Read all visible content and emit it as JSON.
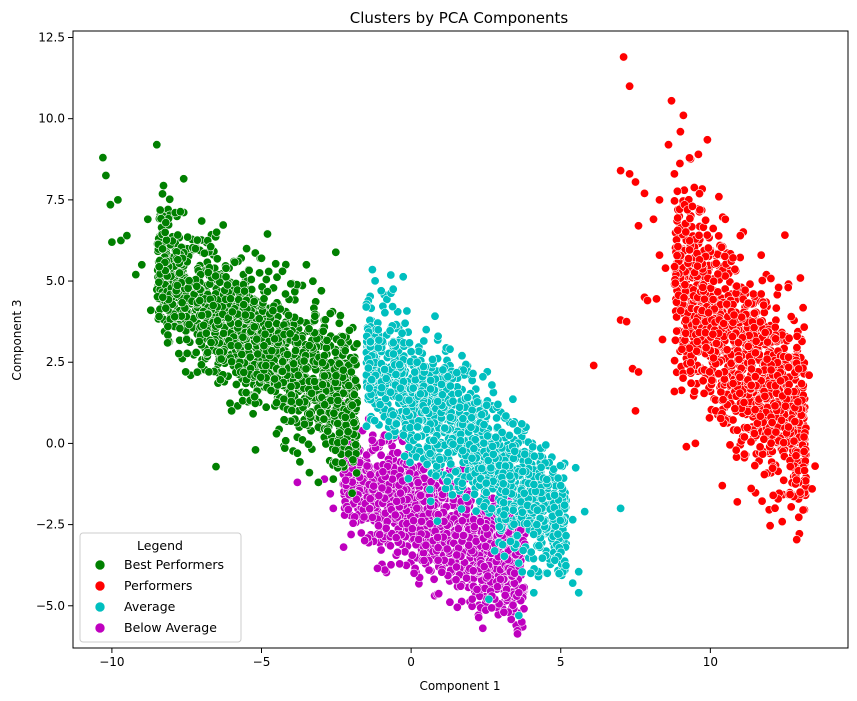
{
  "chart_data": {
    "type": "scatter",
    "title": "Clusters by PCA Components",
    "xlabel": "Component 1",
    "ylabel": "Component 3",
    "xlim": [
      -11.3,
      14.6
    ],
    "ylim": [
      -6.3,
      12.7
    ],
    "xticks": [
      -10,
      -5,
      0,
      5,
      10
    ],
    "yticks": [
      -5.0,
      -2.5,
      0.0,
      2.5,
      5.0,
      7.5,
      10.0,
      12.5
    ],
    "grid": false,
    "legend": {
      "title": "Legend",
      "placement": "lower-left"
    },
    "series": [
      {
        "name": "Best Performers",
        "color": "#008000",
        "cloud": {
          "x_range": [
            -8.5,
            -1.8
          ],
          "center_line": {
            "x0": -8,
            "y0": 5.0,
            "slope": -0.62
          },
          "spread": 1.0,
          "count": 1500
        },
        "points": [
          [
            -10.3,
            8.8
          ],
          [
            -10.2,
            8.25
          ],
          [
            -10.05,
            7.35
          ],
          [
            -9.8,
            7.5
          ],
          [
            -10.0,
            6.2
          ],
          [
            -9.7,
            6.25
          ],
          [
            -9.5,
            6.4
          ],
          [
            -8.5,
            9.2
          ],
          [
            -7.6,
            8.15
          ],
          [
            -9.2,
            5.2
          ],
          [
            -8.8,
            6.9
          ],
          [
            -7.0,
            6.85
          ],
          [
            -6.5,
            6.5
          ],
          [
            -5.5,
            6.0
          ],
          [
            -4.8,
            6.45
          ],
          [
            -3.5,
            5.5
          ],
          [
            -8.2,
            6.8
          ],
          [
            -9.0,
            5.5
          ],
          [
            -8.7,
            4.1
          ],
          [
            -5.0,
            5.7
          ],
          [
            -4.3,
            5.3
          ],
          [
            -3.0,
            4.7
          ],
          [
            -2.7,
            4.0
          ],
          [
            -2.4,
            3.7
          ],
          [
            -5.2,
            -0.2
          ],
          [
            -3.4,
            -0.9
          ],
          [
            -3.1,
            -1.2
          ],
          [
            -2.6,
            -1.1
          ],
          [
            -2.3,
            -0.6
          ],
          [
            -6.8,
            2.8
          ],
          [
            -7.5,
            3.2
          ],
          [
            -7.9,
            3.9
          ],
          [
            -8.3,
            4.5
          ],
          [
            -6.0,
            1.0
          ],
          [
            -4.5,
            0.3
          ],
          [
            -3.8,
            -0.3
          ],
          [
            -2.2,
            0.8
          ],
          [
            -2.0,
            2.2
          ],
          [
            -1.9,
            1.5
          ],
          [
            -4.2,
            4.6
          ]
        ]
      },
      {
        "name": "Performers",
        "color": "#ff0000",
        "cloud": {
          "x_range": [
            8.8,
            13.2
          ],
          "center_line": {
            "x0": 9.5,
            "y0": 4.5,
            "slope": -1.15
          },
          "spread": 1.4,
          "count": 1300
        },
        "points": [
          [
            7.1,
            11.9
          ],
          [
            7.3,
            11.0
          ],
          [
            8.7,
            10.55
          ],
          [
            9.1,
            10.1
          ],
          [
            9.0,
            9.6
          ],
          [
            8.6,
            9.2
          ],
          [
            9.9,
            9.35
          ],
          [
            9.6,
            8.9
          ],
          [
            7.0,
            8.4
          ],
          [
            7.3,
            8.3
          ],
          [
            7.5,
            8.05
          ],
          [
            7.8,
            7.7
          ],
          [
            7.6,
            6.7
          ],
          [
            8.1,
            6.9
          ],
          [
            8.3,
            7.5
          ],
          [
            8.8,
            8.3
          ],
          [
            6.1,
            2.4
          ],
          [
            7.0,
            3.8
          ],
          [
            7.2,
            3.75
          ],
          [
            7.4,
            2.3
          ],
          [
            7.6,
            2.2
          ],
          [
            7.5,
            1.0
          ],
          [
            7.8,
            4.5
          ],
          [
            8.2,
            4.45
          ],
          [
            8.5,
            5.4
          ],
          [
            8.4,
            3.2
          ],
          [
            8.8,
            1.6
          ],
          [
            9.2,
            -0.1
          ],
          [
            9.5,
            0.0
          ],
          [
            10.4,
            -1.3
          ],
          [
            10.9,
            -1.8
          ],
          [
            12.1,
            -1.6
          ],
          [
            13.1,
            -2.05
          ],
          [
            13.0,
            -1.5
          ],
          [
            13.4,
            -1.4
          ],
          [
            13.5,
            -0.7
          ],
          [
            13.3,
            2.1
          ],
          [
            12.9,
            3.3
          ],
          [
            12.6,
            4.8
          ],
          [
            11.7,
            5.8
          ],
          [
            11.0,
            6.4
          ],
          [
            10.5,
            6.9
          ],
          [
            9.4,
            7.3
          ],
          [
            8.3,
            5.8
          ],
          [
            7.9,
            4.4
          ]
        ]
      },
      {
        "name": "Average",
        "color": "#00bfbf",
        "cloud": {
          "x_range": [
            -1.5,
            5.2
          ],
          "center_line": {
            "x0": -1.0,
            "y0": 2.3,
            "slope": -0.78
          },
          "spread": 0.95,
          "count": 1400
        },
        "points": [
          [
            -1.5,
            4.2
          ],
          [
            -1.0,
            4.7
          ],
          [
            -0.6,
            4.75
          ],
          [
            -0.2,
            3.7
          ],
          [
            1.3,
            2.9
          ],
          [
            1.7,
            2.7
          ],
          [
            2.4,
            2.05
          ],
          [
            2.7,
            1.8
          ],
          [
            3.4,
            0.6
          ],
          [
            3.7,
            0.6
          ],
          [
            4.5,
            -0.05
          ],
          [
            5.5,
            -0.75
          ],
          [
            5.0,
            -1.3
          ],
          [
            5.8,
            -2.1
          ],
          [
            5.4,
            -2.35
          ],
          [
            7.0,
            -2.0
          ],
          [
            5.6,
            -3.95
          ],
          [
            5.4,
            -4.3
          ],
          [
            5.6,
            -4.6
          ],
          [
            4.1,
            -4.6
          ],
          [
            3.6,
            -5.3
          ],
          [
            4.0,
            -4.0
          ],
          [
            4.8,
            -3.6
          ],
          [
            0.9,
            3.3
          ],
          [
            2.6,
            -4.8
          ],
          [
            -1.1,
            3.5
          ],
          [
            3.3,
            -1.0
          ],
          [
            1.4,
            1.3
          ],
          [
            0.2,
            2.5
          ],
          [
            2.0,
            0.5
          ],
          [
            4.2,
            -2.5
          ],
          [
            3.1,
            -2.2
          ],
          [
            -0.6,
            3.1
          ],
          [
            2.9,
            1.2
          ]
        ]
      },
      {
        "name": "Below Average",
        "color": "#bf00bf",
        "cloud": {
          "x_range": [
            -2.3,
            3.8
          ],
          "center_line": {
            "x0": -2.0,
            "y0": -1.0,
            "slope": -0.52
          },
          "spread": 0.9,
          "count": 1300
        },
        "points": [
          [
            -3.8,
            -1.2
          ],
          [
            -2.9,
            -1.1
          ],
          [
            -2.7,
            -1.55
          ],
          [
            -2.6,
            -2.0
          ],
          [
            -0.8,
            2.3
          ],
          [
            -0.2,
            1.4
          ],
          [
            0.2,
            0.7
          ],
          [
            0.1,
            -4.0
          ],
          [
            0.6,
            -3.9
          ],
          [
            1.5,
            -4.2
          ],
          [
            2.2,
            -4.5
          ],
          [
            3.1,
            -5.2
          ],
          [
            3.7,
            -5.5
          ],
          [
            2.7,
            -4.7
          ],
          [
            3.6,
            -4.6
          ],
          [
            1.4,
            -0.8
          ],
          [
            1.9,
            -1.8
          ],
          [
            2.5,
            -2.6
          ],
          [
            3.8,
            -3.1
          ],
          [
            -1.3,
            0.1
          ],
          [
            -2.0,
            -0.6
          ],
          [
            0.9,
            -3.6
          ],
          [
            -0.5,
            -2.9
          ],
          [
            1.1,
            -2.4
          ]
        ]
      }
    ]
  }
}
